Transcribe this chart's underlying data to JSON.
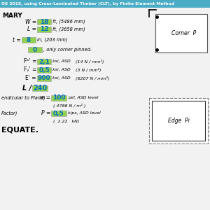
{
  "title": "OS 2015, using Cross-Laminated Timber (CLT), by Finite Element Method",
  "title_bg": "#4bacc6",
  "title_color": "white",
  "bg_color": "#f2f2f2",
  "section1_label": "MARY",
  "w_value": "18",
  "w_unit": "ft, (5486 mm)",
  "l_value": "12",
  "l_unit": "ft, (3658 mm)",
  "t_value": "8",
  "t_unit": "in, (203 mm)",
  "pin_value": "0",
  "pin_note": ", only corner pinned.",
  "fb_value": "2,1",
  "fb_unit": "ksi, ASD",
  "fb_note": "(14 N / mm²)",
  "fv_value": "0,5",
  "fv_unit": "ksi, ASD",
  "fv_note": "(3 N / mm²)",
  "e_value": "900",
  "e_unit": "ksi, ASD",
  "e_note": "(6207 N / mm²)",
  "defl_label": "L /",
  "defl_value": "240",
  "w_load_label": "endicular to Plane)",
  "w_load_eq": "w =",
  "w_load_value": "100",
  "w_load_unit": "psf, ASD level",
  "w_load_si": "( 4788 N / m² )",
  "p_label": "Factor)",
  "p_eq": "P =",
  "p_value": "0,5",
  "p_unit": "kips, ASD level",
  "p_si": "(  2.22   kN)",
  "result": "EQUATE.",
  "green_bg": "#92d050",
  "input_text_color": "#0070c0",
  "corner_label": "Corner  P",
  "edge_label": "Edge  Pi",
  "box_border": "#808080"
}
